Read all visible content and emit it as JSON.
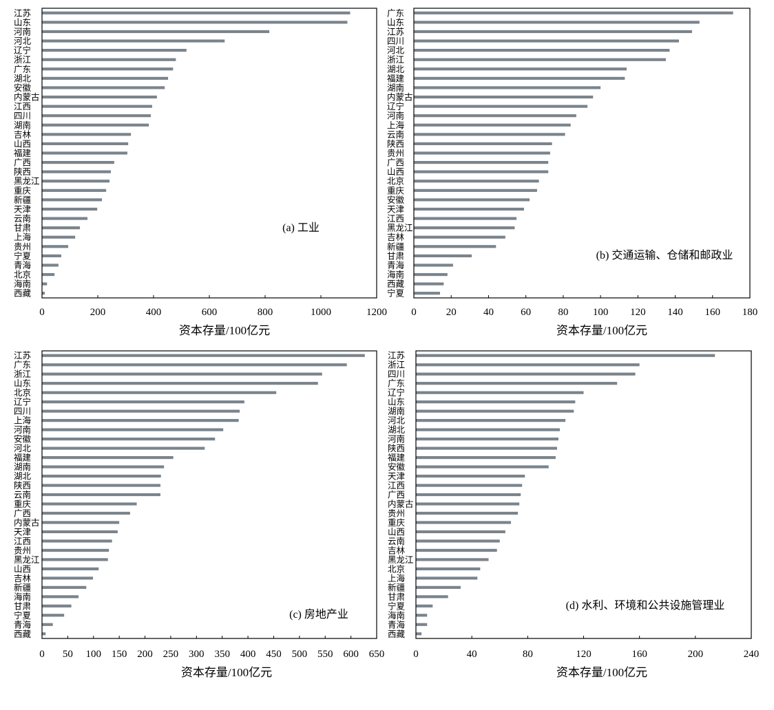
{
  "colors": {
    "bar": "#7a848d",
    "axis": "#000000",
    "background": "#ffffff"
  },
  "chart_data": [
    {
      "type": "bar",
      "orientation": "horizontal",
      "title": "(a) 工业",
      "xlabel": "资本存量/100亿元",
      "ylabel": "",
      "xlim": [
        0,
        1200
      ],
      "xticks": [
        0,
        200,
        400,
        600,
        800,
        1000,
        1200
      ],
      "grid": false,
      "categories": [
        "江苏",
        "山东",
        "河南",
        "河北",
        "辽宁",
        "浙江",
        "广东",
        "湖北",
        "安徽",
        "内蒙古",
        "江西",
        "四川",
        "湖南",
        "吉林",
        "山西",
        "福建",
        "广西",
        "陕西",
        "黑龙江",
        "重庆",
        "新疆",
        "天津",
        "云南",
        "甘肃",
        "上海",
        "贵州",
        "宁夏",
        "青海",
        "北京",
        "海南",
        "西藏"
      ],
      "values": [
        1105,
        1095,
        815,
        655,
        518,
        480,
        470,
        452,
        440,
        412,
        395,
        390,
        383,
        319,
        309,
        306,
        259,
        247,
        242,
        230,
        215,
        198,
        163,
        136,
        119,
        94,
        69,
        59,
        45,
        18,
        10
      ]
    },
    {
      "type": "bar",
      "orientation": "horizontal",
      "title": "(b) 交通运输、仓储和邮政业",
      "xlabel": "资本存量/100亿元",
      "ylabel": "",
      "xlim": [
        0,
        180
      ],
      "xticks": [
        0,
        20,
        40,
        60,
        80,
        100,
        120,
        140,
        160,
        180
      ],
      "grid": false,
      "categories": [
        "广东",
        "山东",
        "江苏",
        "四川",
        "河北",
        "浙江",
        "湖北",
        "福建",
        "湖南",
        "内蒙古",
        "辽宁",
        "河南",
        "上海",
        "云南",
        "陕西",
        "贵州",
        "广西",
        "山西",
        "北京",
        "重庆",
        "安徽",
        "天津",
        "江西",
        "黑龙江",
        "吉林",
        "新疆",
        "甘肃",
        "青海",
        "海南",
        "西藏",
        "宁夏"
      ],
      "values": [
        171,
        153,
        149,
        142,
        137,
        135,
        114,
        113,
        100,
        96,
        93,
        87,
        84,
        81,
        74,
        73,
        72,
        72,
        67,
        66,
        62,
        59,
        55,
        54,
        49,
        44,
        31,
        21,
        18,
        16,
        14
      ]
    },
    {
      "type": "bar",
      "orientation": "horizontal",
      "title": "(c) 房地产业",
      "xlabel": "资本存量/100亿元",
      "ylabel": "",
      "xlim": [
        0,
        650
      ],
      "xticks": [
        0,
        50,
        100,
        150,
        200,
        250,
        300,
        350,
        400,
        450,
        500,
        550,
        600,
        650
      ],
      "grid": false,
      "categories": [
        "江苏",
        "广东",
        "浙江",
        "山东",
        "北京",
        "辽宁",
        "四川",
        "上海",
        "河南",
        "安徽",
        "河北",
        "福建",
        "湖南",
        "湖北",
        "陕西",
        "云南",
        "重庆",
        "广西",
        "内蒙古",
        "天津",
        "江西",
        "贵州",
        "黑龙江",
        "山西",
        "吉林",
        "新疆",
        "海南",
        "甘肃",
        "宁夏",
        "青海",
        "西藏"
      ],
      "values": [
        627,
        592,
        544,
        536,
        455,
        393,
        384,
        382,
        352,
        336,
        316,
        255,
        237,
        231,
        230,
        230,
        184,
        171,
        150,
        147,
        136,
        130,
        128,
        110,
        99,
        86,
        71,
        57,
        43,
        21,
        7
      ]
    },
    {
      "type": "bar",
      "orientation": "horizontal",
      "title": "(d) 水利、环境和公共设施管理业",
      "xlabel": "资本存量/100亿元",
      "ylabel": "",
      "xlim": [
        0,
        240
      ],
      "xticks": [
        0,
        40,
        80,
        120,
        160,
        200,
        240
      ],
      "grid": false,
      "categories": [
        "江苏",
        "浙江",
        "四川",
        "广东",
        "辽宁",
        "山东",
        "湖南",
        "河北",
        "湖北",
        "河南",
        "陕西",
        "福建",
        "安徽",
        "天津",
        "江西",
        "广西",
        "内蒙古",
        "贵州",
        "重庆",
        "山西",
        "云南",
        "吉林",
        "黑龙江",
        "北京",
        "上海",
        "新疆",
        "甘肃",
        "宁夏",
        "海南",
        "青海",
        "西藏"
      ],
      "values": [
        214,
        160,
        157,
        144,
        120,
        114,
        113,
        107,
        103,
        102,
        101,
        100,
        95,
        78,
        76,
        75,
        74,
        73,
        68,
        64,
        60,
        58,
        52,
        46,
        44,
        32,
        23,
        12,
        8,
        8,
        4
      ]
    }
  ]
}
